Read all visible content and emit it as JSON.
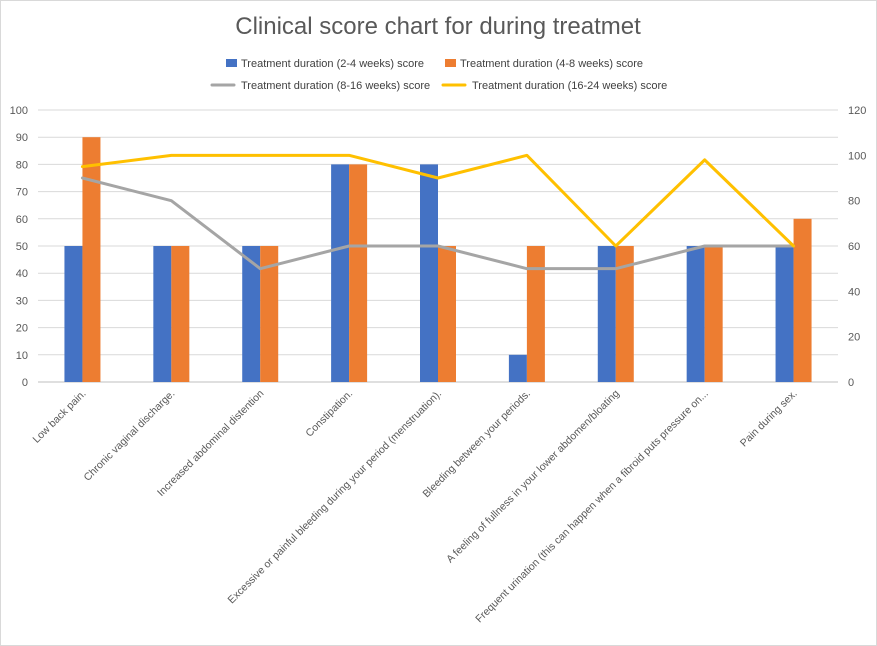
{
  "chart_data": {
    "type": "bar",
    "title": "Clinical score chart for during treatmet",
    "categories": [
      "Low back pain.",
      "Chronic vaginal discharge.",
      "Increased abdominal distention",
      "Constipation.",
      "Excessive or painful bleeding during your period (menstruation).",
      "Bleeding between your periods.",
      "A feeling of fullness in your lower abdomen/bloating",
      "Frequent urination (this can happen when a fibroid puts pressure on...",
      "Pain during sex."
    ],
    "series": [
      {
        "name": "Treatment duration (2-4 weeks) score",
        "type": "bar",
        "axis": "left",
        "color": "#4472c4",
        "values": [
          50,
          50,
          50,
          80,
          80,
          10,
          50,
          50,
          50
        ]
      },
      {
        "name": "Treatment duration (4-8 weeks) score",
        "type": "bar",
        "axis": "left",
        "color": "#ed7d31",
        "values": [
          90,
          50,
          50,
          80,
          50,
          50,
          50,
          50,
          60
        ]
      },
      {
        "name": "Treatment duration (8-16 weeks) score",
        "type": "line",
        "axis": "right",
        "color": "#a5a5a5",
        "values": [
          90,
          80,
          50,
          60,
          60,
          50,
          50,
          60,
          60
        ]
      },
      {
        "name": "Treatment duration (16-24 weeks) score",
        "type": "line",
        "axis": "right",
        "color": "#ffc000",
        "values": [
          95,
          100,
          100,
          100,
          90,
          100,
          60,
          98,
          60
        ]
      }
    ],
    "y_left": {
      "min": 0,
      "max": 100,
      "ticks": [
        "0",
        "10",
        "20",
        "30",
        "40",
        "50",
        "60",
        "70",
        "80",
        "90",
        "100"
      ]
    },
    "y_right": {
      "min": 0,
      "max": 120,
      "ticks": [
        "0",
        "20",
        "40",
        "60",
        "80",
        "100",
        "120"
      ]
    },
    "grid": true,
    "legend": "top"
  }
}
